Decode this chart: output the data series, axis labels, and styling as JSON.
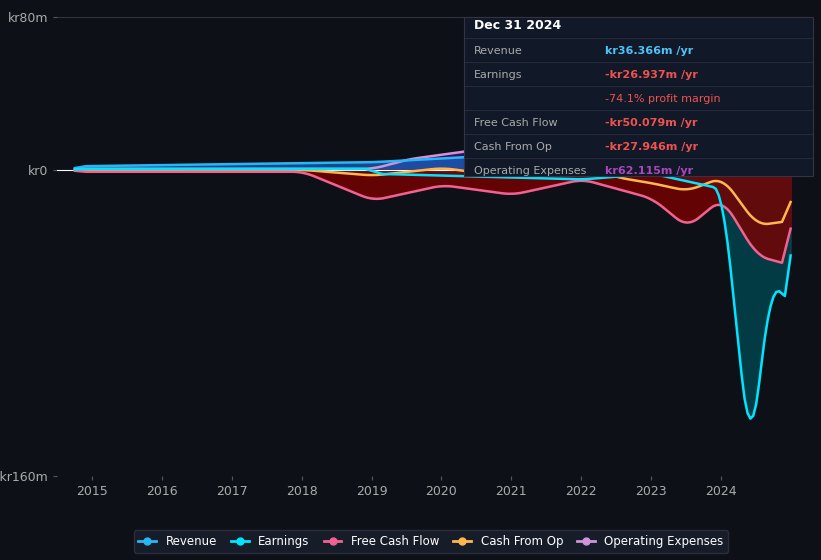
{
  "bg_color": "#0d1117",
  "plot_bg_color": "#0d1117",
  "title": "Dec 31 2024",
  "table_data": {
    "Revenue": {
      "value": "kr36.366m /yr",
      "color": "#4fc3f7"
    },
    "Earnings": {
      "value": "-kr26.937m /yr",
      "color": "#ef5350",
      "sub": "-74.1% profit margin",
      "sub_color": "#ef5350"
    },
    "Free Cash Flow": {
      "value": "-kr50.079m /yr",
      "color": "#ef5350"
    },
    "Cash From Op": {
      "value": "-kr27.946m /yr",
      "color": "#ef5350"
    },
    "Operating Expenses": {
      "value": "kr62.115m /yr",
      "color": "#ab47bc"
    }
  },
  "ylim": [
    -160,
    80
  ],
  "yticks": [
    -160,
    0,
    80
  ],
  "ytick_labels": [
    "-kr160m",
    "kr0",
    "kr80m"
  ],
  "xlim": [
    2014.5,
    2025.2
  ],
  "xticks": [
    2015,
    2016,
    2017,
    2018,
    2019,
    2020,
    2021,
    2022,
    2023,
    2024
  ],
  "series": {
    "Revenue": {
      "color": "#29b6f6",
      "fill": true,
      "fill_color": "#1565c0",
      "fill_alpha": 0.5
    },
    "Earnings": {
      "color": "#00e5ff",
      "fill": true,
      "fill_color": "#00bcd4",
      "fill_alpha": 0.3
    },
    "Free Cash Flow": {
      "color": "#f06292",
      "fill": true,
      "fill_color": "#880e4f",
      "fill_alpha": 0.5
    },
    "Cash From Op": {
      "color": "#ffb74d",
      "fill": false
    },
    "Operating Expenses": {
      "color": "#ce93d8",
      "fill": true,
      "fill_color": "#4a148c",
      "fill_alpha": 0.5
    }
  },
  "legend": [
    {
      "label": "Revenue",
      "color": "#29b6f6"
    },
    {
      "label": "Earnings",
      "color": "#00e5ff"
    },
    {
      "label": "Free Cash Flow",
      "color": "#f06292"
    },
    {
      "label": "Cash From Op",
      "color": "#ffb74d"
    },
    {
      "label": "Operating Expenses",
      "color": "#ce93d8"
    }
  ]
}
